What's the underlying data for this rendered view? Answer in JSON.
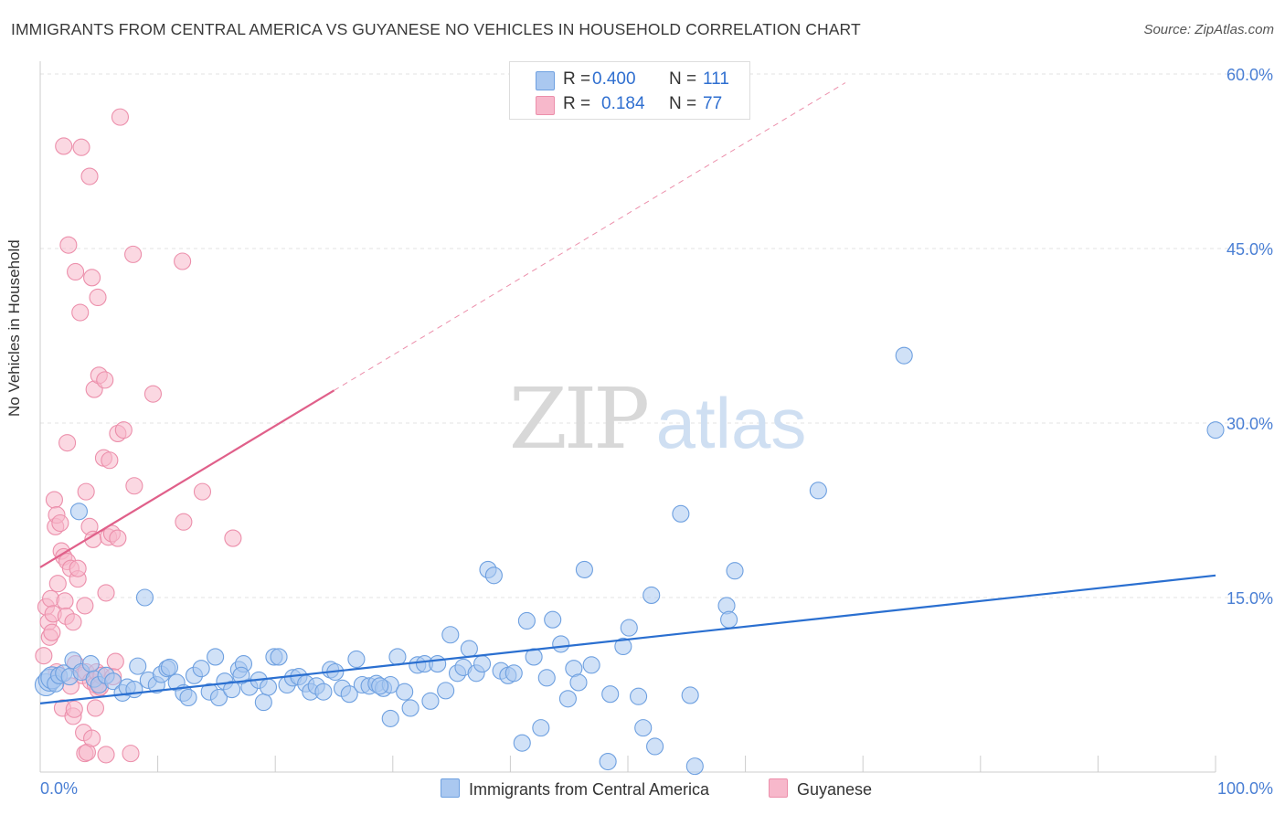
{
  "title": "IMMIGRANTS FROM CENTRAL AMERICA VS GUYANESE NO VEHICLES IN HOUSEHOLD CORRELATION CHART",
  "source": "Source: ZipAtlas.com",
  "watermark": {
    "zip": "ZIP",
    "atlas": "atlas"
  },
  "legend": {
    "r_label": "R =",
    "n_label": "N =",
    "rows": [
      {
        "r": "0.400",
        "n": "111",
        "color": "#aac8f0"
      },
      {
        "r": "0.184",
        "n": "77",
        "color": "#f7b8cb"
      }
    ]
  },
  "colors": {
    "blue_fill": "#aac8f0",
    "blue_stroke": "#6ea0e0",
    "blue_line": "#2a6fd0",
    "pink_fill": "#f7b8cb",
    "pink_stroke": "#ec8fab",
    "pink_line": "#e0608a",
    "tick_label": "#4a7fd4"
  },
  "chart_data": {
    "type": "scatter",
    "title": "IMMIGRANTS FROM CENTRAL AMERICA VS GUYANESE NO VEHICLES IN HOUSEHOLD CORRELATION CHART",
    "xlabel": "",
    "ylabel": "No Vehicles in Household",
    "xlim": [
      0,
      100
    ],
    "ylim": [
      0,
      60
    ],
    "x_tick_labels": [
      "0.0%",
      "100.0%"
    ],
    "y_tick_labels": [
      "15.0%",
      "30.0%",
      "45.0%",
      "60.0%"
    ],
    "y_ticks": [
      15,
      30,
      45,
      60
    ],
    "grid": true,
    "legend_position": "top-center",
    "series": [
      {
        "name": "Immigrants from Central America",
        "r": 0.4,
        "n": 111,
        "trend": {
          "x": [
            0,
            100
          ],
          "y": [
            5.9,
            16.9
          ]
        },
        "points": [
          [
            0.5,
            7.5
          ],
          [
            0.8,
            7.9
          ],
          [
            1,
            8.1
          ],
          [
            1.3,
            7.6
          ],
          [
            1.6,
            8.3
          ],
          [
            2,
            8.5
          ],
          [
            2.5,
            8.2
          ],
          [
            2.8,
            9.6
          ],
          [
            3.3,
            22.4
          ],
          [
            3.5,
            8.6
          ],
          [
            4.3,
            9.3
          ],
          [
            4.6,
            8
          ],
          [
            5,
            7.5
          ],
          [
            5.6,
            8.3
          ],
          [
            6.2,
            7.8
          ],
          [
            7,
            6.8
          ],
          [
            7.4,
            7.3
          ],
          [
            8,
            7.1
          ],
          [
            8.3,
            9.1
          ],
          [
            8.9,
            15
          ],
          [
            9.2,
            7.9
          ],
          [
            9.9,
            7.5
          ],
          [
            10.3,
            8.4
          ],
          [
            10.8,
            8.9
          ],
          [
            11,
            9
          ],
          [
            11.6,
            7.7
          ],
          [
            12.2,
            6.8
          ],
          [
            12.6,
            6.4
          ],
          [
            13.1,
            8.3
          ],
          [
            13.7,
            8.9
          ],
          [
            14.4,
            6.9
          ],
          [
            14.9,
            9.9
          ],
          [
            15.2,
            6.4
          ],
          [
            15.7,
            7.8
          ],
          [
            16.3,
            7.1
          ],
          [
            16.9,
            8.8
          ],
          [
            17.3,
            9.3
          ],
          [
            17.8,
            7.3
          ],
          [
            18.6,
            7.9
          ],
          [
            19,
            6
          ],
          [
            19.4,
            7.3
          ],
          [
            19.9,
            9.9
          ],
          [
            20.3,
            9.9
          ],
          [
            21,
            7.5
          ],
          [
            21.5,
            8.1
          ],
          [
            22,
            8.2
          ],
          [
            22.6,
            7.6
          ],
          [
            23,
            6.9
          ],
          [
            23.5,
            7.4
          ],
          [
            24.1,
            6.9
          ],
          [
            24.7,
            8.8
          ],
          [
            25.1,
            8.6
          ],
          [
            25.7,
            7.2
          ],
          [
            26.3,
            6.7
          ],
          [
            26.9,
            9.7
          ],
          [
            27.4,
            7.5
          ],
          [
            28,
            7.4
          ],
          [
            28.6,
            7.6
          ],
          [
            29.2,
            7.2
          ],
          [
            29.8,
            7.5
          ],
          [
            30.4,
            9.9
          ],
          [
            31,
            6.9
          ],
          [
            31.5,
            5.5
          ],
          [
            32.1,
            9.2
          ],
          [
            32.7,
            9.3
          ],
          [
            33.2,
            6.1
          ],
          [
            33.8,
            9.3
          ],
          [
            34.5,
            7
          ],
          [
            34.9,
            11.8
          ],
          [
            35.5,
            8.5
          ],
          [
            36,
            9
          ],
          [
            36.5,
            10.6
          ],
          [
            37.1,
            8.5
          ],
          [
            37.6,
            9.3
          ],
          [
            38.1,
            17.4
          ],
          [
            38.6,
            16.9
          ],
          [
            39.2,
            8.7
          ],
          [
            39.8,
            8.3
          ],
          [
            40.3,
            8.5
          ],
          [
            41.4,
            13
          ],
          [
            41,
            2.5
          ],
          [
            42,
            9.9
          ],
          [
            42.6,
            3.8
          ],
          [
            43.1,
            8.1
          ],
          [
            43.6,
            13.1
          ],
          [
            44.3,
            11
          ],
          [
            44.9,
            6.3
          ],
          [
            45.4,
            8.9
          ],
          [
            45.8,
            7.7
          ],
          [
            46.3,
            17.4
          ],
          [
            46.9,
            9.2
          ],
          [
            48.5,
            6.7
          ],
          [
            49.6,
            10.8
          ],
          [
            50.1,
            12.4
          ],
          [
            50.9,
            6.5
          ],
          [
            51.3,
            3.8
          ],
          [
            52,
            15.2
          ],
          [
            52.3,
            2.2
          ],
          [
            54.5,
            22.2
          ],
          [
            55.3,
            6.6
          ],
          [
            58.4,
            14.3
          ],
          [
            58.6,
            13.1
          ],
          [
            59.1,
            17.3
          ],
          [
            66.2,
            24.2
          ],
          [
            73.5,
            35.8
          ],
          [
            100,
            29.4
          ],
          [
            55.7,
            0.5
          ],
          [
            48.3,
            0.9
          ],
          [
            28.9,
            7.4
          ],
          [
            17.1,
            8.3
          ],
          [
            29.8,
            4.6
          ]
        ]
      },
      {
        "name": "Guyanese",
        "r": 0.184,
        "n": 77,
        "trend": {
          "x": [
            0,
            25
          ],
          "y": [
            17.6,
            32.8
          ]
        },
        "points": [
          [
            0.3,
            10
          ],
          [
            0.5,
            14.2
          ],
          [
            0.7,
            12.9
          ],
          [
            0.8,
            11.6
          ],
          [
            0.9,
            14.9
          ],
          [
            1,
            12
          ],
          [
            1.1,
            13.6
          ],
          [
            1.2,
            23.4
          ],
          [
            1.3,
            21.1
          ],
          [
            1.4,
            22.1
          ],
          [
            1.4,
            8.6
          ],
          [
            1.5,
            16.2
          ],
          [
            1.6,
            8.3
          ],
          [
            1.7,
            21.4
          ],
          [
            1.8,
            19
          ],
          [
            1.9,
            5.5
          ],
          [
            2,
            18.5
          ],
          [
            2,
            53.8
          ],
          [
            2.1,
            14.7
          ],
          [
            2.2,
            13.4
          ],
          [
            2.3,
            18.1
          ],
          [
            2.3,
            28.3
          ],
          [
            2.4,
            45.3
          ],
          [
            2.6,
            17.5
          ],
          [
            2.6,
            7.4
          ],
          [
            2.8,
            4.8
          ],
          [
            2.8,
            12.9
          ],
          [
            2.9,
            5.4
          ],
          [
            3,
            43
          ],
          [
            3,
            9.3
          ],
          [
            3.2,
            16.6
          ],
          [
            3.2,
            17.5
          ],
          [
            3.4,
            39.5
          ],
          [
            3.5,
            53.7
          ],
          [
            3.6,
            8.3
          ],
          [
            3.7,
            3.4
          ],
          [
            3.8,
            14.3
          ],
          [
            3.8,
            1.6
          ],
          [
            3.9,
            24.1
          ],
          [
            3.9,
            8.6
          ],
          [
            4,
            1.7
          ],
          [
            4.2,
            51.2
          ],
          [
            4.2,
            21.1
          ],
          [
            4.3,
            7.8
          ],
          [
            4.4,
            42.5
          ],
          [
            4.4,
            2.9
          ],
          [
            4.5,
            20
          ],
          [
            4.6,
            32.9
          ],
          [
            4.7,
            7.5
          ],
          [
            4.7,
            5.5
          ],
          [
            4.8,
            8.6
          ],
          [
            4.9,
            7.1
          ],
          [
            4.9,
            40.8
          ],
          [
            5,
            34.1
          ],
          [
            5.1,
            7.3
          ],
          [
            5.2,
            8.3
          ],
          [
            5.4,
            27
          ],
          [
            5.5,
            33.7
          ],
          [
            5.6,
            1.5
          ],
          [
            5.6,
            15.4
          ],
          [
            5.8,
            20.2
          ],
          [
            5.9,
            26.8
          ],
          [
            6.1,
            20.5
          ],
          [
            6.2,
            8.2
          ],
          [
            6.4,
            9.5
          ],
          [
            6.6,
            29.1
          ],
          [
            6.6,
            20.1
          ],
          [
            6.8,
            56.3
          ],
          [
            7.1,
            29.4
          ],
          [
            7.7,
            1.6
          ],
          [
            7.9,
            44.5
          ],
          [
            8,
            24.6
          ],
          [
            9.6,
            32.5
          ],
          [
            12.1,
            43.9
          ],
          [
            12.2,
            21.5
          ],
          [
            13.8,
            24.1
          ],
          [
            16.4,
            20.1
          ]
        ]
      }
    ]
  },
  "bottom_legend": [
    "Immigrants from Central America",
    "Guyanese"
  ]
}
